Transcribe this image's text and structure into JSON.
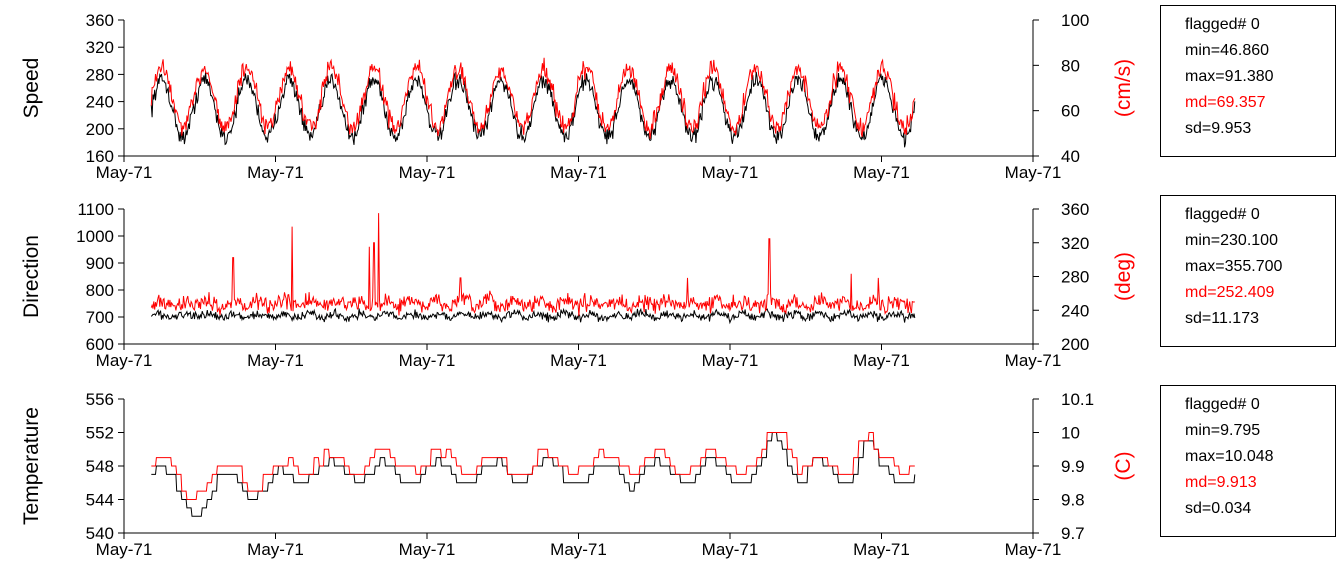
{
  "colors": {
    "primary": "#000000",
    "secondary": "#ff0000",
    "axis": "#000000"
  },
  "chart_data": [
    {
      "type": "line",
      "ylabel": "Speed",
      "y2label": "(cm/s)",
      "yticks": [
        160,
        200,
        240,
        280,
        320,
        360
      ],
      "ylim": [
        160,
        360
      ],
      "y2ticks": [
        40,
        60,
        80,
        100
      ],
      "y2lim": [
        40,
        100
      ],
      "xticklabels": [
        "May-71",
        "May-71",
        "May-71",
        "May-71",
        "May-71",
        "May-71",
        "May-71"
      ],
      "grid": false,
      "series": [
        {
          "color": "#000000",
          "axis": "left",
          "base": 230,
          "amplitude": 42,
          "cycles": 18,
          "noise": 10,
          "start": 0.03,
          "end": 0.87
        },
        {
          "color": "#ff0000",
          "axis": "left",
          "base": 245,
          "amplitude": 44,
          "cycles": 18,
          "noise": 11,
          "start": 0.03,
          "end": 0.87
        }
      ],
      "stats": {
        "flagged": "flagged# 0",
        "min": "min=46.860",
        "max": "max=91.380",
        "md": "md=69.357",
        "sd": "sd=9.953"
      }
    },
    {
      "type": "line",
      "ylabel": "Direction",
      "y2label": "(deg)",
      "yticks": [
        600,
        700,
        800,
        900,
        1000,
        1100
      ],
      "ylim": [
        600,
        1100
      ],
      "y2ticks": [
        200,
        240,
        280,
        320,
        360
      ],
      "y2lim": [
        200,
        360
      ],
      "xticklabels": [
        "May-71",
        "May-71",
        "May-71",
        "May-71",
        "May-71",
        "May-71",
        "May-71"
      ],
      "grid": false,
      "series": [
        {
          "color": "#000000",
          "axis": "left",
          "base": 705,
          "amplitude": 8,
          "cycles": 30,
          "noise": 12,
          "spikes": [],
          "start": 0.03,
          "end": 0.87
        },
        {
          "color": "#ff0000",
          "axis": "left",
          "base": 750,
          "amplitude": 10,
          "cycles": 30,
          "noise": 22,
          "spikes": [
            [
              0.12,
              920
            ],
            [
              0.185,
              1035
            ],
            [
              0.27,
              960
            ],
            [
              0.275,
              975
            ],
            [
              0.28,
              1085
            ],
            [
              0.37,
              845
            ],
            [
              0.62,
              845
            ],
            [
              0.71,
              990
            ],
            [
              0.8,
              860
            ],
            [
              0.83,
              845
            ]
          ],
          "start": 0.03,
          "end": 0.87
        }
      ],
      "stats": {
        "flagged": "flagged# 0",
        "min": "min=230.100",
        "max": "max=355.700",
        "md": "md=252.409",
        "sd": "sd=11.173"
      }
    },
    {
      "type": "line",
      "ylabel": "Temperature",
      "y2label": "(C)",
      "yticks": [
        540,
        544,
        548,
        552,
        556
      ],
      "ylim": [
        540,
        556
      ],
      "y2ticks": [
        9.7,
        9.8,
        9.9,
        10,
        10.1
      ],
      "y2lim": [
        9.7,
        10.1
      ],
      "xticklabels": [
        "May-71",
        "May-71",
        "May-71",
        "May-71",
        "May-71",
        "May-71",
        "May-71"
      ],
      "grid": false,
      "series": [
        {
          "color": "#000000",
          "axis": "left",
          "base": 547.2,
          "amplitude": 1.3,
          "cycles": 14,
          "noise": 0.5,
          "step": 1,
          "events": [
            [
              0.04,
              0.12,
              -3.5
            ],
            [
              0.12,
              0.18,
              -2.5
            ],
            [
              0.7,
              0.74,
              4
            ],
            [
              0.8,
              0.83,
              3
            ]
          ],
          "start": 0.03,
          "end": 0.87
        },
        {
          "color": "#ff0000",
          "axis": "left",
          "base": 548.3,
          "amplitude": 1.2,
          "cycles": 14,
          "noise": 0.5,
          "step": 1,
          "events": [
            [
              0.04,
              0.12,
              -3
            ],
            [
              0.12,
              0.18,
              -2.5
            ],
            [
              0.7,
              0.74,
              4
            ],
            [
              0.8,
              0.83,
              3
            ]
          ],
          "start": 0.03,
          "end": 0.87
        }
      ],
      "stats": {
        "flagged": "flagged# 0",
        "min": "min=9.795",
        "max": "max=10.048",
        "md": "md=9.913",
        "sd": "sd=0.034"
      }
    }
  ]
}
